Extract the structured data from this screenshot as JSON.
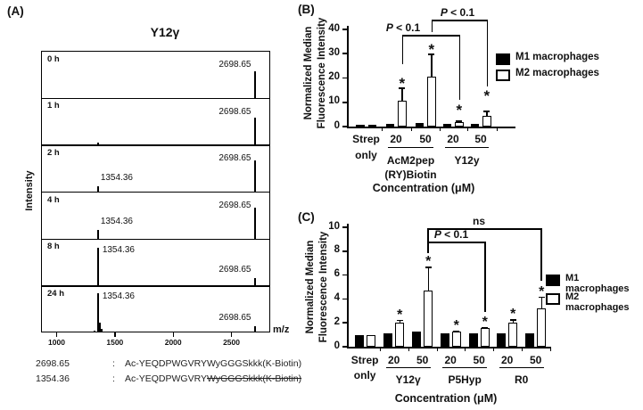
{
  "colors": {
    "ink": "#111111",
    "bar_m1": "#000000",
    "bar_m2": "#ffffff",
    "background": "#ffffff"
  },
  "chart_data": [
    {
      "panel": "A",
      "type": "line",
      "subtype": "maldi-mass-spectra-time-course",
      "label": "(A)",
      "title": "Y12γ",
      "ylabel": "Intensity",
      "xlabel": "m/z",
      "x_ticks": [
        1000,
        1500,
        2000,
        2500
      ],
      "x_range": [
        900,
        2830
      ],
      "series": [
        {
          "time": "0 h",
          "peaks": [
            {
              "mz": 2698.65,
              "rel_intensity": 0.6,
              "label": "2698.65",
              "label_side": "left"
            }
          ]
        },
        {
          "time": "1 h",
          "peaks": [
            {
              "mz": 1354.36,
              "rel_intensity": 0.04
            },
            {
              "mz": 2698.65,
              "rel_intensity": 0.61,
              "label": "2698.65",
              "label_side": "left"
            }
          ]
        },
        {
          "time": "2 h",
          "peaks": [
            {
              "mz": 1354.36,
              "rel_intensity": 0.13,
              "label": "1354.36",
              "label_side": "above"
            },
            {
              "mz": 2698.65,
              "rel_intensity": 0.7,
              "label": "2698.65",
              "label_side": "left"
            }
          ]
        },
        {
          "time": "4 h",
          "peaks": [
            {
              "mz": 1354.36,
              "rel_intensity": 0.19,
              "label": "1354.36",
              "label_side": "above"
            },
            {
              "mz": 2698.65,
              "rel_intensity": 0.7,
              "label": "2698.65",
              "label_side": "left"
            }
          ]
        },
        {
          "time": "8 h",
          "peaks": [
            {
              "mz": 1354.36,
              "rel_intensity": 0.85,
              "label": "1354.36",
              "label_side": "right"
            },
            {
              "mz": 2698.65,
              "rel_intensity": 0.16,
              "label": "2698.65",
              "label_side": "above"
            }
          ]
        },
        {
          "time": "24 h",
          "peaks": [
            {
              "mz": 1100,
              "rel_intensity": 0.02
            },
            {
              "mz": 1180,
              "rel_intensity": 0.02
            },
            {
              "mz": 1322,
              "rel_intensity": 0.05
            },
            {
              "mz": 1354.36,
              "rel_intensity": 0.88,
              "label": "1354.36",
              "label_side": "right"
            },
            {
              "mz": 1368,
              "rel_intensity": 0.22
            },
            {
              "mz": 1390,
              "rel_intensity": 0.08
            },
            {
              "mz": 1450,
              "rel_intensity": 0.03
            },
            {
              "mz": 1600,
              "rel_intensity": 0.02
            },
            {
              "mz": 2698.65,
              "rel_intensity": 0.15,
              "label": "2698.65",
              "label_side": "above"
            }
          ]
        }
      ],
      "caption": [
        {
          "mass": "2698.65",
          "separator": ":",
          "sequence": "Ac-YEQDPWGVRYWyGGGSkkk(K-Biotin)",
          "struck_part": ""
        },
        {
          "mass": "1354.36",
          "separator": ":",
          "sequence": "Ac-YEQDPWGVRY",
          "struck_part": "WyGGGSkkk(K-Biotin)"
        }
      ]
    },
    {
      "panel": "B",
      "type": "bar",
      "label": "(B)",
      "ylabel": "Normalized Median Fluorescence Intensity",
      "ylabel_lines": [
        "Normalized Median",
        "Fluorescence Intensity"
      ],
      "xlabel": "Concentration (μM)",
      "ylim": [
        0,
        40
      ],
      "yticks": [
        0,
        10,
        20,
        30,
        40
      ],
      "categories": [
        {
          "label": "Strep",
          "label2": "only"
        },
        {
          "label": "20"
        },
        {
          "label": "50"
        },
        {
          "label": "20"
        },
        {
          "label": "50"
        }
      ],
      "groups": [
        {
          "name": "AcM2pep",
          "name2": "(RY)Biotin",
          "from": 1,
          "to": 2
        },
        {
          "name": "Y12y",
          "from": 3,
          "to": 4
        }
      ],
      "series": [
        {
          "name": "M1 macrophages",
          "fill": "#000000",
          "values": [
            0.9,
            1.2,
            1.4,
            1.1,
            1.1
          ],
          "errors": [
            0,
            0,
            0,
            0,
            0
          ],
          "sig": [
            false,
            false,
            false,
            false,
            false
          ]
        },
        {
          "name": "M2 macrophages",
          "fill": "#ffffff",
          "values": [
            0.9,
            10.5,
            20.5,
            2.0,
            4.5
          ],
          "errors": [
            0,
            5.5,
            9.5,
            0.4,
            2.0
          ],
          "sig": [
            false,
            true,
            true,
            true,
            true
          ]
        }
      ],
      "sig_marker": "*",
      "annotations": [
        {
          "text": "P < 0.1",
          "between": [
            "AcM2pep(RY)Biotin 20",
            "Y12y 20"
          ]
        },
        {
          "text": "P < 0.1",
          "between": [
            "AcM2pep(RY)Biotin 50",
            "Y12y 50"
          ]
        }
      ],
      "legend_position": "right"
    },
    {
      "panel": "C",
      "type": "bar",
      "label": "(C)",
      "ylabel": "Normalized Median Fluorescence Intensity",
      "ylabel_lines": [
        "Normalized Median",
        "Fluorescence Intensity"
      ],
      "xlabel": "Concentration (μM)",
      "ylim": [
        0,
        10
      ],
      "yticks": [
        0,
        2,
        4,
        6,
        8,
        10
      ],
      "categories": [
        {
          "label": "Strep",
          "label2": "only"
        },
        {
          "label": "20"
        },
        {
          "label": "50"
        },
        {
          "label": "20"
        },
        {
          "label": "50"
        },
        {
          "label": "20"
        },
        {
          "label": "50"
        }
      ],
      "groups": [
        {
          "name": "Y12γ",
          "from": 1,
          "to": 2
        },
        {
          "name": "P5Hyp",
          "from": 3,
          "to": 4
        },
        {
          "name": "R0",
          "from": 5,
          "to": 6
        }
      ],
      "series": [
        {
          "name": "M1 macrophages",
          "fill": "#000000",
          "values": [
            1.0,
            1.15,
            1.25,
            1.1,
            1.1,
            1.1,
            1.1
          ],
          "errors": [
            0,
            0,
            0,
            0,
            0,
            0,
            0
          ],
          "sig": [
            false,
            false,
            false,
            false,
            false,
            false,
            false
          ]
        },
        {
          "name": "M2 macrophages",
          "fill": "#ffffff",
          "values": [
            1.0,
            2.05,
            4.7,
            1.25,
            1.55,
            2.0,
            3.2
          ],
          "errors": [
            0,
            0.2,
            2.0,
            0.1,
            0.1,
            0.3,
            1.0
          ],
          "sig": [
            false,
            true,
            true,
            true,
            true,
            true,
            true
          ]
        }
      ],
      "sig_marker": "*",
      "annotations": [
        {
          "text": "P < 0.1",
          "between": [
            "Y12γ 50",
            "P5Hyp 50"
          ]
        },
        {
          "text": "ns",
          "between": [
            "Y12γ 50",
            "R0 50"
          ]
        }
      ],
      "legend_position": "right"
    }
  ]
}
